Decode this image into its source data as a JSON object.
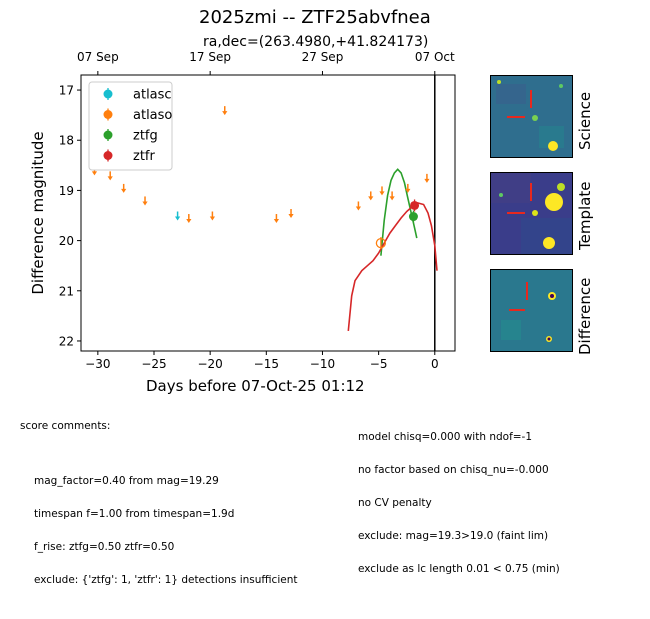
{
  "figure": {
    "title": "2025zmi -- ZTF25abvfnea",
    "subtitle": "ra,dec=(263.4980,+41.824173)"
  },
  "chart_data": {
    "type": "scatter",
    "title": "2025zmi -- ZTF25abvfnea",
    "subtitle": "ra,dec=(263.4980,+41.824173)",
    "xlabel": "Days before 07-Oct-25 01:12",
    "ylabel": "Difference magnitude",
    "xlim": [
      -31.5,
      1.8
    ],
    "ylim": [
      22.2,
      16.7
    ],
    "xticks": [
      -30,
      -25,
      -20,
      -15,
      -10,
      -5,
      0
    ],
    "yticks": [
      17,
      18,
      19,
      20,
      21,
      22
    ],
    "top_axis_ticks": [
      {
        "x": -30.0,
        "label": "07 Sep"
      },
      {
        "x": -20.0,
        "label": "17 Sep"
      },
      {
        "x": -10.0,
        "label": "27 Sep"
      },
      {
        "x": 0.0,
        "label": "07 Oct"
      }
    ],
    "vline_x": 0.0,
    "legend": {
      "location": "top-left",
      "entries": [
        "atlasc",
        "atlaso",
        "ztfg",
        "ztfr"
      ]
    },
    "series": [
      {
        "name": "atlasc",
        "color": "#17becf",
        "kind": "upper_limits",
        "points": [
          [
            -22.9,
            19.5
          ]
        ]
      },
      {
        "name": "atlaso",
        "color": "#ff7f0e",
        "kind": "upper_limits",
        "points": [
          [
            -30.3,
            18.6
          ],
          [
            -28.9,
            18.7
          ],
          [
            -27.7,
            18.95
          ],
          [
            -25.8,
            19.2
          ],
          [
            -21.9,
            19.55
          ],
          [
            -19.8,
            19.5
          ],
          [
            -18.7,
            17.4
          ],
          [
            -14.1,
            19.55
          ],
          [
            -12.8,
            19.45
          ],
          [
            -6.8,
            19.3
          ],
          [
            -5.7,
            19.1
          ],
          [
            -4.7,
            19.0
          ],
          [
            -3.8,
            19.1
          ],
          [
            -2.4,
            18.95
          ],
          [
            -0.7,
            18.75
          ]
        ]
      },
      {
        "name": "atlaso",
        "color": "#ff7f0e",
        "kind": "detections",
        "points": [
          [
            -4.8,
            20.05
          ]
        ]
      },
      {
        "name": "ztfg",
        "color": "#2ca02c",
        "kind": "detections",
        "points": [
          [
            -1.9,
            19.52
          ]
        ]
      },
      {
        "name": "ztfr",
        "color": "#d62728",
        "kind": "detections",
        "points": [
          [
            -1.8,
            19.3
          ]
        ]
      }
    ],
    "model_curves": [
      {
        "name": "ztfg",
        "color": "#2ca02c",
        "x": [
          -4.8,
          -4.5,
          -4.2,
          -3.9,
          -3.6,
          -3.3,
          -3.0,
          -2.7,
          -2.4,
          -2.1,
          -1.8,
          -1.6
        ],
        "y": [
          20.3,
          19.6,
          19.1,
          18.8,
          18.65,
          18.58,
          18.65,
          18.85,
          19.15,
          19.45,
          19.75,
          19.95
        ]
      },
      {
        "name": "ztfr",
        "color": "#d62728",
        "x": [
          -7.7,
          -7.4,
          -7.1,
          -6.8,
          -6.5,
          -6.0,
          -5.5,
          -5.0,
          -4.5,
          -4.0,
          -3.5,
          -3.0,
          -2.5,
          -2.0,
          -1.5,
          -1.0,
          -0.6,
          -0.3,
          0.0,
          0.2
        ],
        "y": [
          21.8,
          21.1,
          20.8,
          20.7,
          20.6,
          20.5,
          20.4,
          20.25,
          20.05,
          19.85,
          19.7,
          19.55,
          19.42,
          19.32,
          19.25,
          19.28,
          19.45,
          19.7,
          20.1,
          20.6
        ]
      }
    ]
  },
  "stamps": [
    {
      "label": "Science"
    },
    {
      "label": "Template"
    },
    {
      "label": "Difference"
    }
  ],
  "score_comments": {
    "header": "score comments:",
    "lines": [
      "mag_factor=0.40 from mag=19.29",
      "timespan f=1.00 from timespan=1.9d",
      "f_rise: ztfg=0.50 ztfr=0.50",
      "exclude: {'ztfg': 1, 'ztfr': 1} detections insufficient"
    ]
  },
  "model_comments": {
    "lines": [
      "model chisq=0.000 with ndof=-1",
      "no factor based on chisq_nu=-0.000",
      "no CV penalty",
      "exclude: mag=19.3>19.0 (faint lim)",
      "exclude as lc length 0.01 < 0.75 (min)"
    ]
  }
}
